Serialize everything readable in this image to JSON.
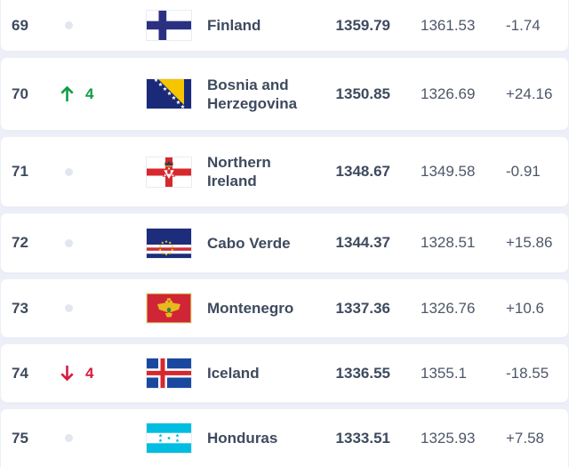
{
  "colors": {
    "background": "#edeff8",
    "card": "#ffffff",
    "text_primary": "#3e4a5e",
    "text_secondary": "#4d5768",
    "up_green": "#0f9e43",
    "down_red": "#d81b3e",
    "no_change_dot": "#e2e6ee"
  },
  "ranking_table": {
    "rows": [
      {
        "rank": "69",
        "movement": {
          "direction": "none",
          "places": ""
        },
        "country": "Finland",
        "flag": "finland",
        "points": "1359.79",
        "previous_points": "1361.53",
        "change": "-1.74"
      },
      {
        "rank": "70",
        "movement": {
          "direction": "up",
          "places": "4"
        },
        "country": "Bosnia and Herzegovina",
        "flag": "bosnia-and-herzegovina",
        "points": "1350.85",
        "previous_points": "1326.69",
        "change": "+24.16"
      },
      {
        "rank": "71",
        "movement": {
          "direction": "none",
          "places": ""
        },
        "country": "Northern Ireland",
        "flag": "northern-ireland",
        "points": "1348.67",
        "previous_points": "1349.58",
        "change": "-0.91"
      },
      {
        "rank": "72",
        "movement": {
          "direction": "none",
          "places": ""
        },
        "country": "Cabo Verde",
        "flag": "cabo-verde",
        "points": "1344.37",
        "previous_points": "1328.51",
        "change": "+15.86"
      },
      {
        "rank": "73",
        "movement": {
          "direction": "none",
          "places": ""
        },
        "country": "Montenegro",
        "flag": "montenegro",
        "points": "1337.36",
        "previous_points": "1326.76",
        "change": "+10.6"
      },
      {
        "rank": "74",
        "movement": {
          "direction": "down",
          "places": "4"
        },
        "country": "Iceland",
        "flag": "iceland",
        "points": "1336.55",
        "previous_points": "1355.1",
        "change": "-18.55"
      },
      {
        "rank": "75",
        "movement": {
          "direction": "none",
          "places": ""
        },
        "country": "Honduras",
        "flag": "honduras",
        "points": "1333.51",
        "previous_points": "1325.93",
        "change": "+7.58"
      }
    ]
  }
}
